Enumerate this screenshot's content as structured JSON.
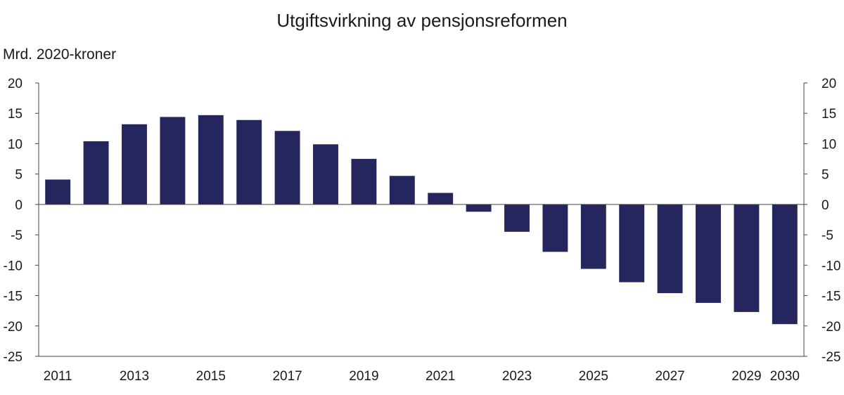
{
  "chart_data": {
    "type": "bar",
    "title": "Utgiftsvirkning av pensjonsreformen",
    "ylabel": "Mrd. 2020-kroner",
    "xlabel": "",
    "categories": [
      "2011",
      "2012",
      "2013",
      "2014",
      "2015",
      "2016",
      "2017",
      "2018",
      "2019",
      "2020",
      "2021",
      "2022",
      "2023",
      "2024",
      "2025",
      "2026",
      "2027",
      "2028",
      "2029",
      "2030"
    ],
    "values": [
      4.1,
      10.4,
      13.2,
      14.4,
      14.7,
      13.9,
      12.1,
      9.9,
      7.5,
      4.7,
      1.9,
      -1.2,
      -4.5,
      -7.8,
      -10.6,
      -12.8,
      -14.6,
      -16.2,
      -17.7,
      -19.7
    ],
    "x_tick_labels": [
      "2011",
      "2013",
      "2015",
      "2017",
      "2019",
      "2021",
      "2023",
      "2025",
      "2027",
      "2029",
      "2030"
    ],
    "ylim": [
      -25,
      20
    ],
    "y_ticks": [
      20,
      15,
      10,
      5,
      0,
      -5,
      -10,
      -15,
      -20,
      -25
    ],
    "y_axis_both_sides": true,
    "grid": false,
    "legend": "none",
    "bar_color": "#25265e"
  }
}
